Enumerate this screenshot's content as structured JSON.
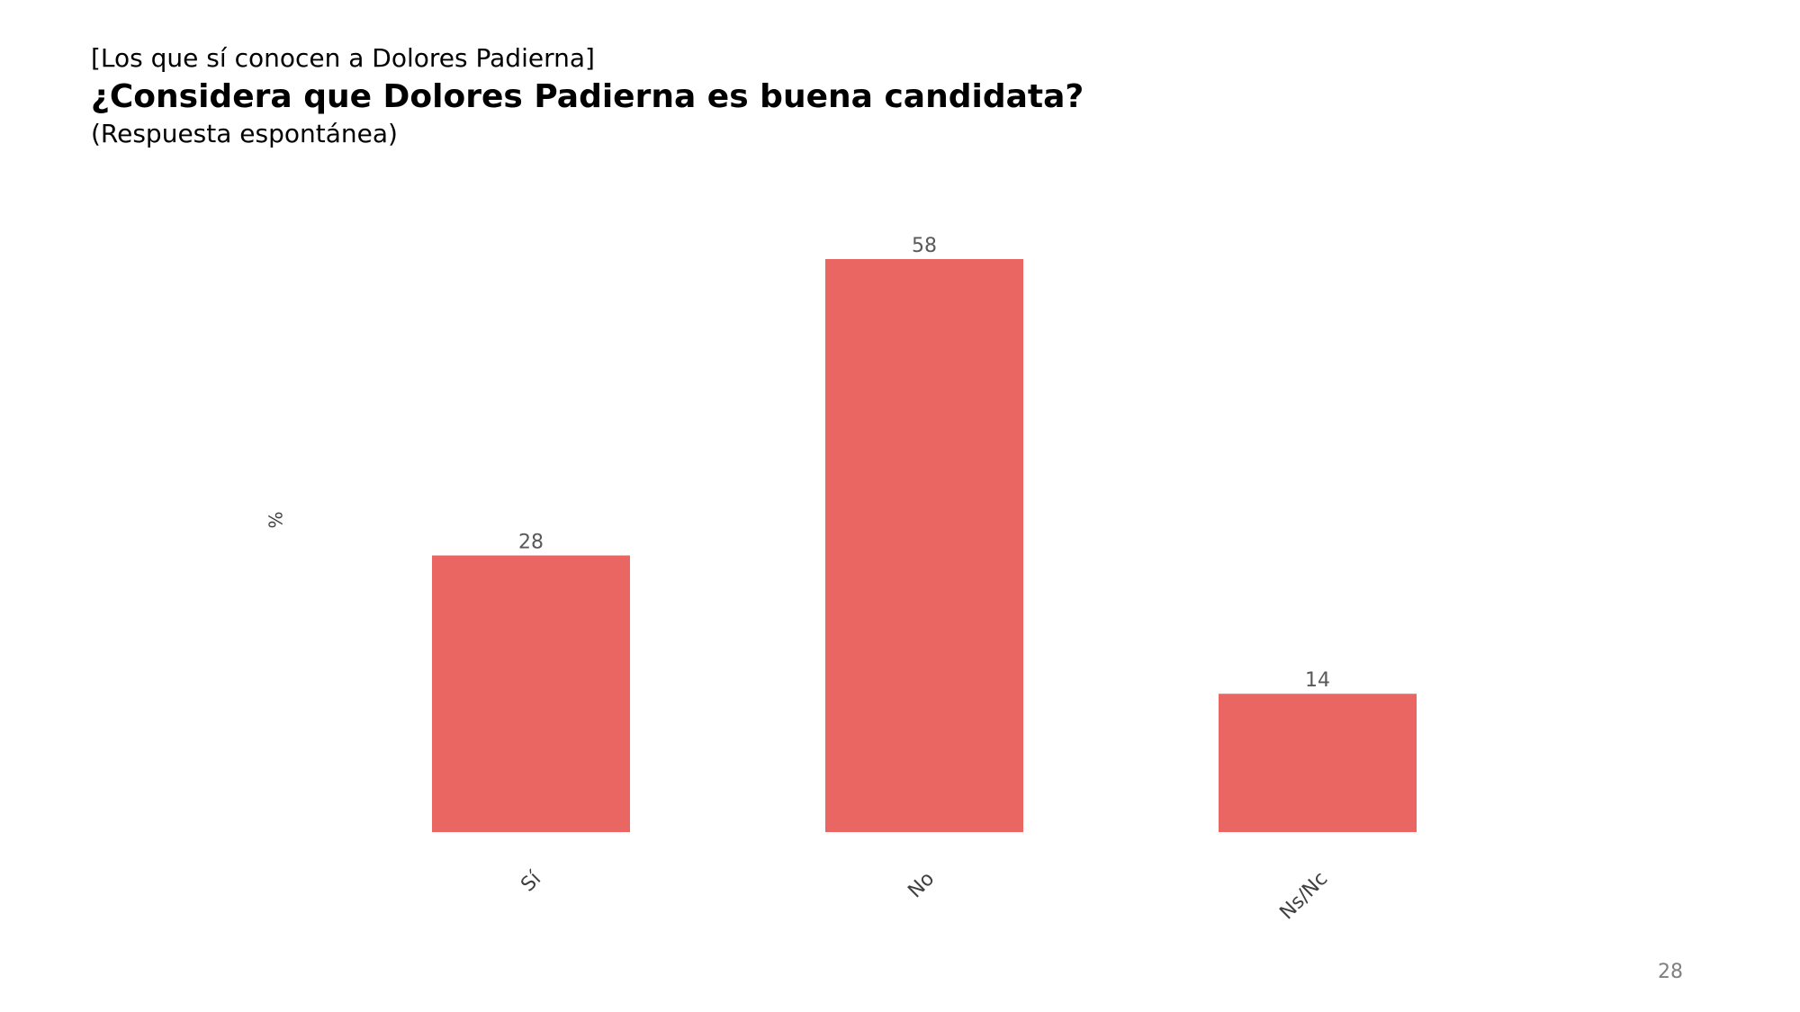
{
  "header": {
    "subset_label": "[Los que sí conocen a Dolores Padierna]",
    "question": "¿Considera que Dolores Padierna es buena candidata?",
    "note": "(Respuesta espontánea)"
  },
  "page_number": "28",
  "colors": {
    "bar": "#EA6663",
    "value_label": "#595959",
    "axis_text": "#404040"
  },
  "chart_data": {
    "type": "bar",
    "categories": [
      "Sí",
      "No",
      "Ns/Nc"
    ],
    "values": [
      28,
      58,
      14
    ],
    "data_labels": [
      "28",
      "58",
      "14"
    ],
    "ylabel": "%",
    "ylim": [
      0,
      58
    ],
    "grid": false,
    "legend": "none"
  }
}
